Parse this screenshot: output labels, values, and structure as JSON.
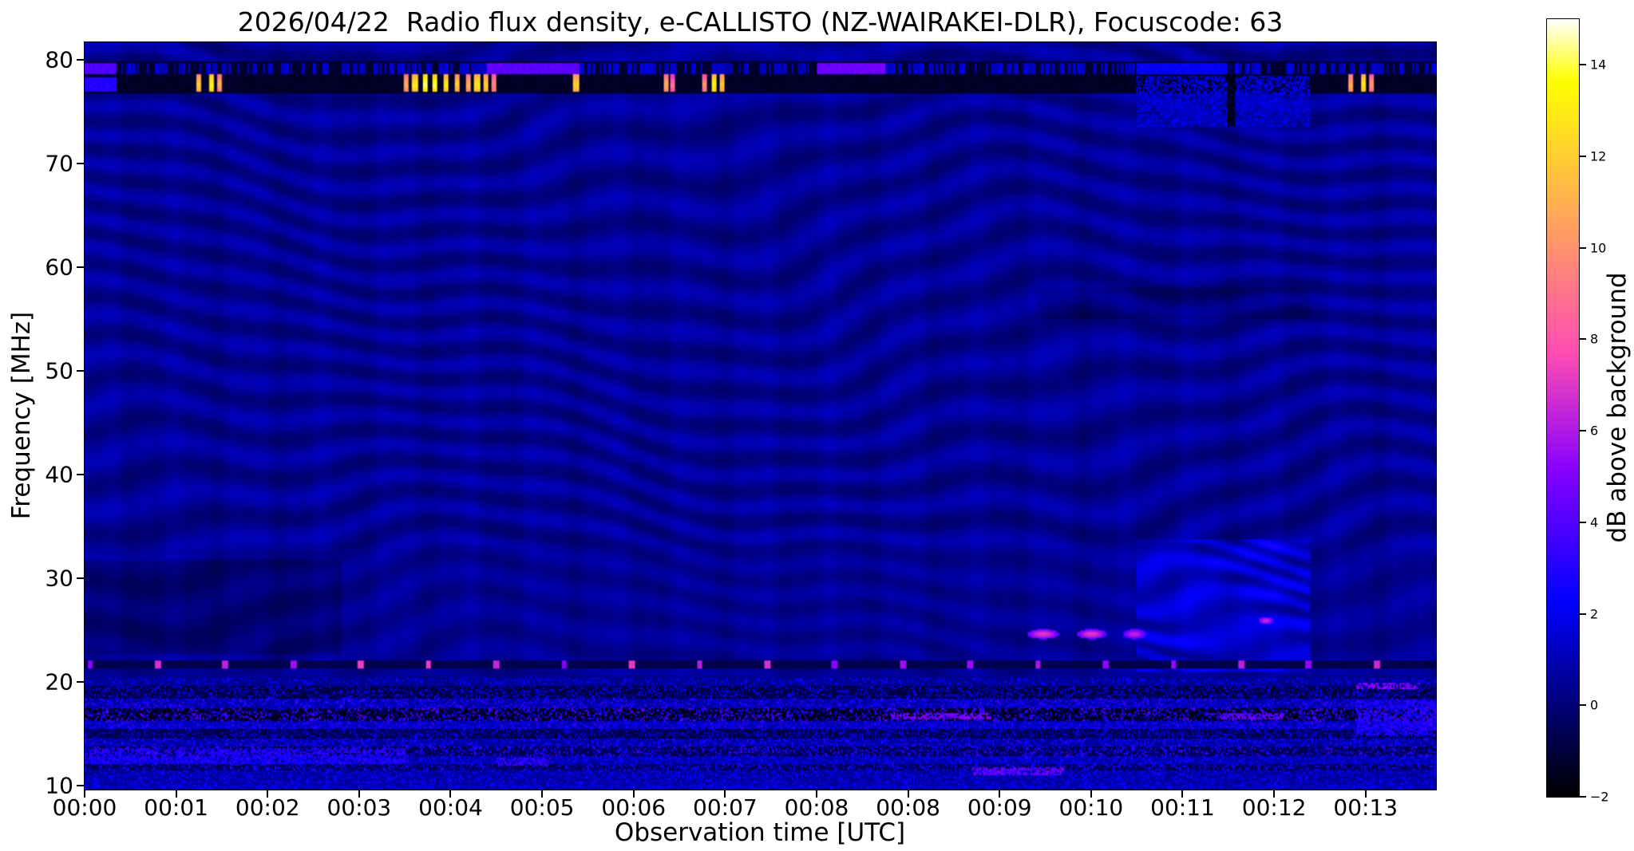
{
  "chart_data": {
    "type": "heatmap",
    "title": "2026/04/22  Radio flux density, e-CALLISTO (NZ-WAIRAKEI-DLR), Focuscode: 63",
    "xlabel": "Observation time [UTC]",
    "ylabel": "Frequency [MHz]",
    "colorbar_label": "dB above background",
    "colormap": "gnuplot2",
    "grid": false,
    "legend": "none",
    "x_tick_labels": [
      "00:00",
      "00:01",
      "00:02",
      "00:03",
      "00:04",
      "00:05",
      "00:06",
      "00:07",
      "00:08",
      "00:08",
      "00:09",
      "00:10",
      "00:11",
      "00:12",
      "00:13"
    ],
    "y_ticks": [
      80,
      70,
      60,
      50,
      40,
      30,
      20,
      10
    ],
    "colorbar_ticks": [
      {
        "value": -2,
        "label": "−2"
      },
      {
        "value": 0,
        "label": "0"
      },
      {
        "value": 2,
        "label": "2"
      },
      {
        "value": 4,
        "label": "4"
      },
      {
        "value": 6,
        "label": "6"
      },
      {
        "value": 8,
        "label": "8"
      },
      {
        "value": 10,
        "label": "10"
      },
      {
        "value": 12,
        "label": "12"
      },
      {
        "value": 14,
        "label": "14"
      }
    ],
    "x_range_min": [
      0,
      14.77
    ],
    "y_range_mhz": [
      9.6,
      81.7
    ],
    "color_range_db": [
      -2,
      15
    ],
    "features": {
      "background_db": 0.45,
      "top_rfi_band": {
        "f": [
          76.8,
          79.9
        ],
        "upper_stripe": [
          78.7,
          79.7
        ],
        "lower_stripe": [
          76.9,
          78.3
        ]
      },
      "rfi_segments": [
        {
          "t": [
            0,
            0.35
          ],
          "stripe": "upper",
          "db": 4.0
        },
        {
          "t": [
            0,
            0.35
          ],
          "stripe": "lower",
          "db": 3.0
        },
        {
          "t": [
            4.4,
            5.4
          ],
          "stripe": "upper",
          "db": 4.2
        },
        {
          "t": [
            8.0,
            8.75
          ],
          "stripe": "upper",
          "db": 4.6
        },
        {
          "t": [
            11.5,
            12.6
          ],
          "stripe": "upper",
          "db": 2.2
        }
      ],
      "rfi_bursts": [
        {
          "t": 1.25,
          "db": 12
        },
        {
          "t": 1.38,
          "db": 13.5
        },
        {
          "t": 1.48,
          "db": 11
        },
        {
          "t": 3.52,
          "db": 11
        },
        {
          "t": 3.61,
          "db": 13
        },
        {
          "t": 3.72,
          "db": 14.5
        },
        {
          "t": 3.83,
          "db": 14
        },
        {
          "t": 3.95,
          "db": 13
        },
        {
          "t": 4.07,
          "db": 12
        },
        {
          "t": 4.19,
          "db": 11
        },
        {
          "t": 4.29,
          "db": 13
        },
        {
          "t": 4.38,
          "db": 12
        },
        {
          "t": 4.47,
          "db": 10
        },
        {
          "t": 5.37,
          "db": 12
        },
        {
          "t": 6.35,
          "db": 11
        },
        {
          "t": 6.43,
          "db": 9
        },
        {
          "t": 6.78,
          "db": 10
        },
        {
          "t": 6.88,
          "db": 13.5
        },
        {
          "t": 6.97,
          "db": 12
        },
        {
          "t": 13.84,
          "db": 11
        },
        {
          "t": 13.98,
          "db": 13
        },
        {
          "t": 14.07,
          "db": 10
        }
      ],
      "enhanced_region": {
        "t": [
          11.5,
          13.4
        ],
        "f": [
          21.0,
          33.7
        ],
        "db_boost": 1.7
      },
      "dim_regions": [
        {
          "t": [
            0,
            2.8
          ],
          "f": [
            22.7,
            31.8
          ],
          "db": -0.55
        },
        {
          "t": [
            10.4,
            13.4
          ],
          "f": [
            55,
            58
          ],
          "db": -0.45
        }
      ],
      "post_dim_regions": [
        {
          "t": [
            12.49,
            12.57
          ],
          "f": [
            73.5,
            79.9
          ],
          "db": -2.8
        }
      ],
      "speckle_patches": [
        {
          "t": [
            11.5,
            13.4
          ],
          "f": [
            73.5,
            78.4
          ],
          "db": 1.8
        },
        {
          "t": [
            9.7,
            10.7
          ],
          "f": [
            11.0,
            11.8
          ],
          "db": 4.5
        },
        {
          "t": [
            4.5,
            5.1
          ],
          "f": [
            11.9,
            12.7
          ],
          "db": 3.5
        },
        {
          "t": [
            13.9,
            14.6
          ],
          "f": [
            19.3,
            19.9
          ],
          "db": 5
        },
        {
          "t": [
            8.8,
            9.9
          ],
          "f": [
            16.4,
            17.0
          ],
          "db": 5
        },
        {
          "t": [
            12.4,
            13.1
          ],
          "f": [
            16.4,
            17.0
          ],
          "db": 4.5
        },
        {
          "t": [
            13.9,
            14.77
          ],
          "f": [
            14.8,
            18.2
          ],
          "db": 3
        },
        {
          "t": [
            0,
            3.5
          ],
          "f": [
            12.1,
            13.6
          ],
          "db": 3
        }
      ],
      "periodic_dot_row": {
        "f": [
          21.3,
          22.0
        ],
        "t_start": 0.06,
        "period_min": 0.74,
        "half_width_min": 0.032,
        "db": 5.8
      },
      "blobs": [
        {
          "t": [
            10.33,
            10.62
          ],
          "f": [
            24.2,
            25.0
          ],
          "db": 7
        },
        {
          "t": [
            10.87,
            11.14
          ],
          "f": [
            24.2,
            25.0
          ],
          "db": 7
        },
        {
          "t": [
            11.37,
            11.58
          ],
          "f": [
            24.2,
            25.0
          ],
          "db": 6.3
        },
        {
          "t": [
            12.84,
            12.98
          ],
          "f": [
            25.6,
            26.2
          ],
          "db": 6.5
        }
      ],
      "hf_interference_rows": [
        {
          "f": [
            19.7,
            20.3
          ],
          "base": 0.3,
          "speckle": 1.3
        },
        {
          "f": [
            18.4,
            19.6
          ],
          "base": -0.9,
          "speckle": 2.0
        },
        {
          "f": [
            17.5,
            18.3
          ],
          "base": 0.7,
          "speckle": 1.6
        },
        {
          "f": [
            16.2,
            17.4
          ],
          "base": -1.4,
          "speckle": 3.2
        },
        {
          "f": [
            15.4,
            16.2
          ],
          "base": 1.0,
          "speckle": 1.4
        },
        {
          "f": [
            14.5,
            15.4
          ],
          "base": -0.8,
          "speckle": 1.8
        },
        {
          "f": [
            13.7,
            14.5
          ],
          "base": 0.6,
          "speckle": 1.5
        },
        {
          "f": [
            12.8,
            13.7
          ],
          "base": -0.6,
          "speckle": 2.4
        },
        {
          "f": [
            12.1,
            12.8
          ],
          "base": 0.8,
          "speckle": 1.2
        },
        {
          "f": [
            11.5,
            12.1
          ],
          "base": -0.5,
          "speckle": 2.0
        },
        {
          "f": [
            9.6,
            11.5
          ],
          "base": 0.6,
          "speckle": 1.2
        }
      ]
    }
  }
}
